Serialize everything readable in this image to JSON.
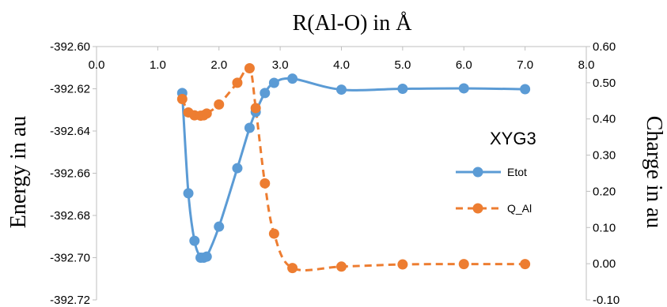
{
  "chart_data": {
    "type": "line",
    "title": "R(Al-O) in Å",
    "ylabel": "Energy in au",
    "y2label": "Charge in au",
    "annotation": "XYG3",
    "xlim": [
      0,
      8
    ],
    "ylim": [
      -392.72,
      -392.6
    ],
    "y2lim": [
      -0.1,
      0.6
    ],
    "x_ticks": [
      "0.0",
      "1.0",
      "2.0",
      "3.0",
      "4.0",
      "5.0",
      "6.0",
      "7.0",
      "8.0"
    ],
    "y_ticks": [
      "-392.60",
      "-392.62",
      "-392.64",
      "-392.66",
      "-392.68",
      "-392.70",
      "-392.72"
    ],
    "y2_ticks": [
      "0.60",
      "0.50",
      "0.40",
      "0.30",
      "0.20",
      "0.10",
      "0.00",
      "-0.10"
    ],
    "x_axis_position": "top",
    "grid": false,
    "legend_position": "right",
    "series": [
      {
        "name": "Etot",
        "axis": "left",
        "color": "#5B9BD5",
        "line_style": "solid",
        "smooth": true,
        "x": [
          1.4,
          1.5,
          1.6,
          1.7,
          1.75,
          1.8,
          2.0,
          2.3,
          2.5,
          2.6,
          2.75,
          2.9,
          3.2,
          4.0,
          5.0,
          6.0,
          7.0
        ],
        "y": [
          -392.622,
          -392.6695,
          -392.692,
          -392.7,
          -392.7,
          -392.6995,
          -392.6853,
          -392.6576,
          -392.6385,
          -392.631,
          -392.622,
          -392.6172,
          -392.6152,
          -392.6204,
          -392.62,
          -392.6198,
          -392.6202
        ]
      },
      {
        "name": "Q_Al",
        "axis": "right",
        "color": "#ED7D31",
        "line_style": "dashed",
        "smooth": true,
        "x": [
          1.4,
          1.5,
          1.6,
          1.7,
          1.75,
          1.8,
          2.0,
          2.3,
          2.5,
          2.6,
          2.75,
          2.9,
          3.2,
          4.0,
          5.0,
          6.0,
          7.0
        ],
        "y": [
          0.455,
          0.418,
          0.41,
          0.409,
          0.41,
          0.415,
          0.44,
          0.5,
          0.54,
          0.43,
          0.222,
          0.083,
          -0.012,
          -0.008,
          -0.002,
          -0.001,
          -0.001
        ]
      }
    ]
  }
}
